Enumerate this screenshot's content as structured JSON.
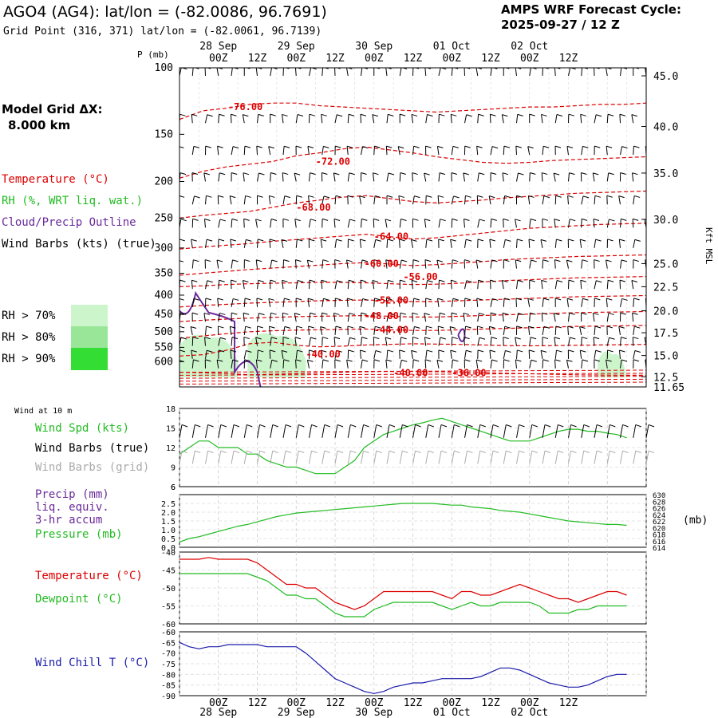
{
  "header": {
    "title": "AGO4 (AG4):  lat/lon = (-82.0086, 96.7691)",
    "grid_point": "Grid Point (316, 371) lat/lon = (-82.0061, 96.7139)",
    "cycle_label": "AMPS WRF Forecast Cycle:",
    "cycle_value": "2025-09-27 / 12  Z"
  },
  "side": {
    "model_grid_label": "Model Grid ΔX:",
    "model_grid_value": "8.000 km",
    "legend_temperature": "Temperature (°C)",
    "legend_rh": "RH (%, WRT liq. wat.)",
    "legend_cloud": "Cloud/Precip Outline",
    "legend_wind": "Wind Barbs (kts) (true)",
    "rh70": "RH > 70%",
    "rh80": "RH > 80%",
    "rh90": "RH > 90%",
    "wind10m": "Wind at 10 m",
    "wind_spd": "Wind Spd (kts)",
    "wind_true": "Wind Barbs (true)",
    "wind_grid": "Wind Barbs (grid)",
    "precip1": "Precip (mm)",
    "precip2": "liq. equiv.",
    "precip3": "3-hr accum",
    "pressure": "Pressure (mb)",
    "temp": "Temperature (°C)",
    "dew": "Dewpoint (°C)",
    "windchill": "Wind Chill T (°C)",
    "mb_unit": "(mb)"
  },
  "colors": {
    "temperature": "#dd0000",
    "rh70": "#ccf5cc",
    "rh80": "#99e699",
    "rh90": "#33dd33",
    "cloud": "#6a2a9a",
    "windspd": "#22bb22",
    "windgrid": "#aaaaaa",
    "windchill": "#1a1aaa",
    "dewpoint": "#22bb22"
  },
  "time_axis": {
    "hour_labels": [
      "00Z",
      "12Z",
      "00Z",
      "12Z",
      "00Z",
      "12Z",
      "00Z",
      "12Z",
      "00Z",
      "12Z"
    ],
    "date_labels_top": [
      "28 Sep",
      "29 Sep",
      "30 Sep",
      "01 Oct",
      "02 Oct"
    ],
    "date_labels_bottom": [
      "28 Sep",
      "29 Sep",
      "30 Sep",
      "01 Oct",
      "02 Oct"
    ]
  },
  "chart_data": [
    {
      "type": "cross-section",
      "name": "upper-air",
      "ylabel": "P (mb)",
      "ylabel_right": "Kft MSL",
      "pressure_ticks": [
        "100",
        "150",
        "200",
        "250",
        "300",
        "350",
        "400",
        "450",
        "500",
        "550",
        "600"
      ],
      "height_ticks": [
        "45.0",
        "40.0",
        "35.0",
        "30.0",
        "25.0",
        "22.5",
        "20.0",
        "17.5",
        "15.0",
        "12.5",
        "11.65"
      ],
      "height_tick_pressures": [
        105,
        143,
        190,
        252,
        330,
        380,
        440,
        503,
        578,
        658,
        700
      ],
      "isotherms": [
        {
          "label": "-76.00",
          "pressures": [
            137,
            130,
            128,
            125,
            124,
            124,
            126,
            127,
            128,
            129,
            130,
            131,
            130,
            129,
            128,
            127,
            127,
            126,
            125,
            125,
            124
          ]
        },
        {
          "label": "-72.00",
          "pressures": [
            196,
            188,
            183,
            180,
            177,
            171,
            168,
            164,
            162,
            165,
            168,
            172,
            175,
            178,
            179,
            178,
            176,
            175,
            174,
            173,
            172
          ]
        },
        {
          "label": "-68.00",
          "pressures": [
            250,
            246,
            243,
            240,
            234,
            228,
            224,
            220,
            218,
            222,
            226,
            228,
            226,
            224,
            221,
            219,
            217,
            215,
            214,
            213,
            212
          ]
        },
        {
          "label": "-64.00",
          "pressures": [
            302,
            298,
            295,
            292,
            288,
            285,
            282,
            279,
            276,
            280,
            284,
            282,
            278,
            274,
            270,
            266,
            264,
            262,
            260,
            259,
            258
          ]
        },
        {
          "label": "-60.00",
          "pressures": [
            354,
            350,
            346,
            342,
            339,
            336,
            333,
            330,
            328,
            331,
            334,
            332,
            329,
            326,
            322,
            320,
            318,
            316,
            315,
            314,
            313
          ]
        },
        {
          "label": "-56.00",
          "pressures": [
            380,
            378,
            375,
            373,
            372,
            371,
            370,
            370,
            371,
            373,
            375,
            374,
            372,
            369,
            366,
            364,
            362,
            360,
            359,
            358,
            357
          ]
        },
        {
          "label": "-52.00",
          "pressures": [
            430,
            426,
            423,
            420,
            418,
            416,
            414,
            413,
            412,
            414,
            416,
            416,
            414,
            412,
            410,
            408,
            406,
            404,
            403,
            402,
            401
          ]
        },
        {
          "label": "-48.00",
          "pressures": [
            470,
            466,
            463,
            460,
            458,
            456,
            455,
            454,
            453,
            455,
            457,
            457,
            455,
            453,
            451,
            449,
            447,
            445,
            444,
            443,
            442
          ]
        },
        {
          "label": "-44.00",
          "pressures": [
            520,
            513,
            506,
            500,
            497,
            495,
            494,
            493,
            492,
            494,
            496,
            496,
            494,
            492,
            490,
            488,
            486,
            484,
            483,
            482,
            481
          ]
        },
        {
          "label": "-40.00",
          "pressures": [
            580,
            575,
            560,
            538,
            533,
            543,
            548,
            546,
            542,
            540,
            538,
            539,
            540,
            542,
            544,
            545,
            544,
            543,
            542,
            541,
            540
          ]
        },
        {
          "label": "-36.00",
          "pressures": [
            640,
            642,
            645,
            650,
            648,
            646,
            643,
            640,
            638,
            637,
            637,
            638,
            640,
            642,
            644,
            646,
            648,
            650,
            651,
            652,
            652
          ]
        }
      ],
      "isotherm_label_positions": [
        {
          "label": "-76.00",
          "time_h": 15,
          "pressure": 127
        },
        {
          "label": "-72.00",
          "time_h": 42,
          "pressure": 177
        },
        {
          "label": "-68.00",
          "time_h": 36,
          "pressure": 234
        },
        {
          "label": "-64.00",
          "time_h": 60,
          "pressure": 280
        },
        {
          "label": "-60.00",
          "time_h": 57,
          "pressure": 330
        },
        {
          "label": "-56.00",
          "time_h": 69,
          "pressure": 358
        },
        {
          "label": "-52.00",
          "time_h": 60,
          "pressure": 413
        },
        {
          "label": "-48.00",
          "time_h": 57,
          "pressure": 454
        },
        {
          "label": "-44.00",
          "time_h": 60,
          "pressure": 494
        },
        {
          "label": "-40.00",
          "time_h": 39,
          "pressure": 573
        },
        {
          "label": "-40.00",
          "time_h": 66,
          "pressure": 643
        },
        {
          "label": "-36.00",
          "time_h": 84,
          "pressure": 643
        }
      ],
      "rh_regions": [
        {
          "level": "rh70",
          "from_h": 0,
          "to_h": 18,
          "from_p": 520,
          "to_p": 660
        },
        {
          "level": "rh70",
          "from_h": 21,
          "to_h": 39,
          "from_p": 515,
          "to_p": 660
        },
        {
          "level": "rh70",
          "from_h": 129,
          "to_h": 138,
          "from_p": 575,
          "to_p": 660
        }
      ]
    },
    {
      "type": "line",
      "name": "wind-10m",
      "ylim": [
        6,
        18
      ],
      "yticks": [
        "18",
        "15",
        "12",
        "9",
        "6"
      ],
      "x_hours": [
        0,
        3,
        6,
        9,
        12,
        15,
        18,
        21,
        24,
        27,
        30,
        33,
        36,
        39,
        42,
        45,
        48,
        51,
        54,
        57,
        60,
        63,
        66,
        69,
        72,
        75,
        78,
        81,
        84,
        87,
        90,
        93,
        96,
        99,
        102,
        105,
        108,
        111,
        114,
        117,
        120,
        123,
        126,
        129,
        132,
        135,
        138
      ],
      "series": [
        {
          "name": "Wind Spd (kts)",
          "values": [
            11,
            12,
            13,
            13,
            12,
            12,
            12,
            11,
            11,
            10,
            9.5,
            9,
            9,
            8.5,
            8,
            8,
            8,
            9,
            10,
            12,
            13,
            14,
            14.5,
            15,
            15.5,
            15.8,
            16.2,
            16.5,
            16,
            15.5,
            15,
            14.5,
            14,
            13.5,
            13,
            13,
            13,
            13.5,
            14,
            14.5,
            14.8,
            14.8,
            14.5,
            14.5,
            14.2,
            14,
            13.5
          ]
        }
      ]
    },
    {
      "type": "line",
      "name": "precip-pressure",
      "ylim_left": [
        0,
        3
      ],
      "yticks_left": [
        "2.5",
        "2.0",
        "1.5",
        "1.0",
        "0.5",
        "0.0"
      ],
      "yticks_left_top": "6",
      "ylim_right": [
        614,
        630
      ],
      "yticks_right": [
        "630",
        "628",
        "626",
        "624",
        "622",
        "620",
        "618",
        "616",
        "614"
      ],
      "x_hours": [
        0,
        3,
        6,
        9,
        12,
        15,
        18,
        21,
        24,
        27,
        30,
        33,
        36,
        39,
        42,
        45,
        48,
        51,
        54,
        57,
        60,
        63,
        66,
        69,
        72,
        75,
        78,
        81,
        84,
        87,
        90,
        93,
        96,
        99,
        102,
        105,
        108,
        111,
        114,
        117,
        120,
        123,
        126,
        129,
        132,
        135,
        138
      ],
      "series": [
        {
          "name": "Pressure (mb)",
          "values": [
            0.3,
            0.5,
            0.6,
            0.75,
            0.9,
            1.05,
            1.2,
            1.3,
            1.45,
            1.6,
            1.75,
            1.85,
            1.95,
            2.0,
            2.05,
            2.1,
            2.15,
            2.2,
            2.25,
            2.3,
            2.35,
            2.4,
            2.45,
            2.5,
            2.5,
            2.5,
            2.5,
            2.45,
            2.4,
            2.4,
            2.3,
            2.25,
            2.2,
            2.1,
            2.05,
            2.0,
            1.9,
            1.8,
            1.7,
            1.6,
            1.5,
            1.45,
            1.4,
            1.35,
            1.3,
            1.3,
            1.25
          ]
        },
        {
          "name": "Precip (mm)",
          "values": [
            0,
            0,
            0,
            0,
            0,
            0,
            0,
            0,
            0,
            0,
            0,
            0,
            0,
            0,
            0,
            0,
            0,
            0,
            0,
            0,
            0,
            0,
            0,
            0,
            0,
            0,
            0,
            0,
            0,
            0,
            0,
            0,
            0,
            0,
            0,
            0,
            0,
            0,
            0,
            0,
            0,
            0,
            0,
            0,
            0,
            0,
            0
          ]
        }
      ]
    },
    {
      "type": "line",
      "name": "temperature-dewpoint",
      "ylim": [
        -60,
        -40
      ],
      "yticks": [
        "-40",
        "-45",
        "-50",
        "-55",
        "-60"
      ],
      "x_hours": [
        0,
        3,
        6,
        9,
        12,
        15,
        18,
        21,
        24,
        27,
        30,
        33,
        36,
        39,
        42,
        45,
        48,
        51,
        54,
        57,
        60,
        63,
        66,
        69,
        72,
        75,
        78,
        81,
        84,
        87,
        90,
        93,
        96,
        99,
        102,
        105,
        108,
        111,
        114,
        117,
        120,
        123,
        126,
        129,
        132,
        135,
        138
      ],
      "series": [
        {
          "name": "Temperature (°C)",
          "values": [
            -42,
            -42,
            -42,
            -41.5,
            -42,
            -42,
            -42,
            -42,
            -43,
            -45,
            -47,
            -49,
            -49,
            -50,
            -50,
            -52,
            -54,
            -55,
            -56,
            -55,
            -53,
            -51,
            -51,
            -51,
            -51,
            -51,
            -51,
            -52,
            -53,
            -51,
            -51,
            -52,
            -52,
            -51,
            -50,
            -49,
            -50,
            -51,
            -52,
            -53,
            -53,
            -54,
            -53,
            -52,
            -51,
            -51,
            -52
          ]
        },
        {
          "name": "Dewpoint (°C)",
          "values": [
            -46,
            -46,
            -46,
            -46,
            -46,
            -46,
            -46,
            -46,
            -47,
            -48,
            -50,
            -52,
            -52,
            -53,
            -53,
            -55,
            -57,
            -58,
            -58,
            -58,
            -56,
            -55,
            -54,
            -54,
            -54,
            -54,
            -54,
            -55,
            -56,
            -55,
            -54,
            -55,
            -55,
            -54,
            -54,
            -54,
            -54,
            -55,
            -57,
            -57,
            -57,
            -56,
            -56,
            -55,
            -55,
            -55,
            -55
          ]
        }
      ]
    },
    {
      "type": "line",
      "name": "wind-chill",
      "ylim": [
        -90,
        -60
      ],
      "yticks": [
        "-60",
        "-65",
        "-70",
        "-75",
        "-80",
        "-85",
        "-90"
      ],
      "x_hours": [
        0,
        3,
        6,
        9,
        12,
        15,
        18,
        21,
        24,
        27,
        30,
        33,
        36,
        39,
        42,
        45,
        48,
        51,
        54,
        57,
        60,
        63,
        66,
        69,
        72,
        75,
        78,
        81,
        84,
        87,
        90,
        93,
        96,
        99,
        102,
        105,
        108,
        111,
        114,
        117,
        120,
        123,
        126,
        129,
        132,
        135,
        138
      ],
      "series": [
        {
          "name": "Wind Chill T (°C)",
          "values": [
            -65,
            -67,
            -68,
            -67,
            -67,
            -66,
            -66,
            -66,
            -66,
            -67,
            -67,
            -67,
            -67,
            -70,
            -74,
            -78,
            -82,
            -84,
            -86,
            -88,
            -89,
            -88,
            -86,
            -85,
            -84,
            -84,
            -83,
            -82,
            -82,
            -82,
            -82,
            -81,
            -79,
            -77,
            -77,
            -78,
            -80,
            -82,
            -84,
            -85,
            -86,
            -86,
            -85,
            -83,
            -81,
            -80,
            -80
          ]
        }
      ]
    }
  ]
}
